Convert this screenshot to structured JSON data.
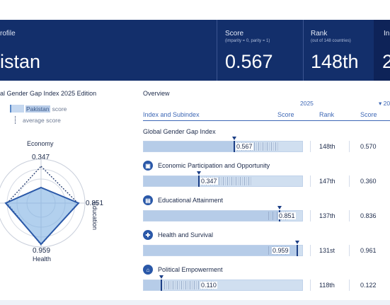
{
  "header": {
    "profile_label": "rofile",
    "country": "istan",
    "score": {
      "label": "Score",
      "sub": "(imparity = 0, parity = 1)",
      "value": "0.567"
    },
    "rank": {
      "label": "Rank",
      "sub": "(out of 148 countries)",
      "value": "148th"
    },
    "side": {
      "label": "In",
      "value": "2"
    }
  },
  "left": {
    "edition_title": "al Gender Gap Index 2025 Edition",
    "legend": {
      "country": "Pakistan",
      "score_word": "score",
      "average": "average score"
    },
    "radar": {
      "economy_label": "Economy",
      "economy_value": "0.347",
      "education_label": "Education",
      "education_value": "0.851",
      "health_label": "Health",
      "health_value": "0.959"
    }
  },
  "overview": {
    "title": "Overview",
    "year_current": "2025",
    "year_previous": "▾ 20",
    "columns": {
      "index": "Index and Subindex",
      "score": "Score",
      "rank": "Rank",
      "score_prev": "Score"
    },
    "rows": [
      {
        "label": "Global Gender Gap Index",
        "icon": "",
        "score": "0.567",
        "value": 0.567,
        "rank": "148th",
        "prev": "0.570"
      },
      {
        "label": "Economic Participation and Opportunity",
        "icon": "briefcase-icon",
        "score": "0.347",
        "value": 0.347,
        "rank": "147th",
        "prev": "0.360"
      },
      {
        "label": "Educational Attainment",
        "icon": "book-icon",
        "score": "0.851",
        "value": 0.851,
        "rank": "137th",
        "prev": "0.836"
      },
      {
        "label": "Health and Survival",
        "icon": "cross-icon",
        "score": "0.959",
        "value": 0.959,
        "rank": "131st",
        "prev": "0.961"
      },
      {
        "label": "Political Empowerment",
        "icon": "building-icon",
        "score": "0.110",
        "value": 0.11,
        "rank": "118th",
        "prev": "0.122"
      }
    ]
  },
  "colors": {
    "brand": "#132f6b",
    "accent": "#3d67b5",
    "bar": "#b6cce8"
  }
}
